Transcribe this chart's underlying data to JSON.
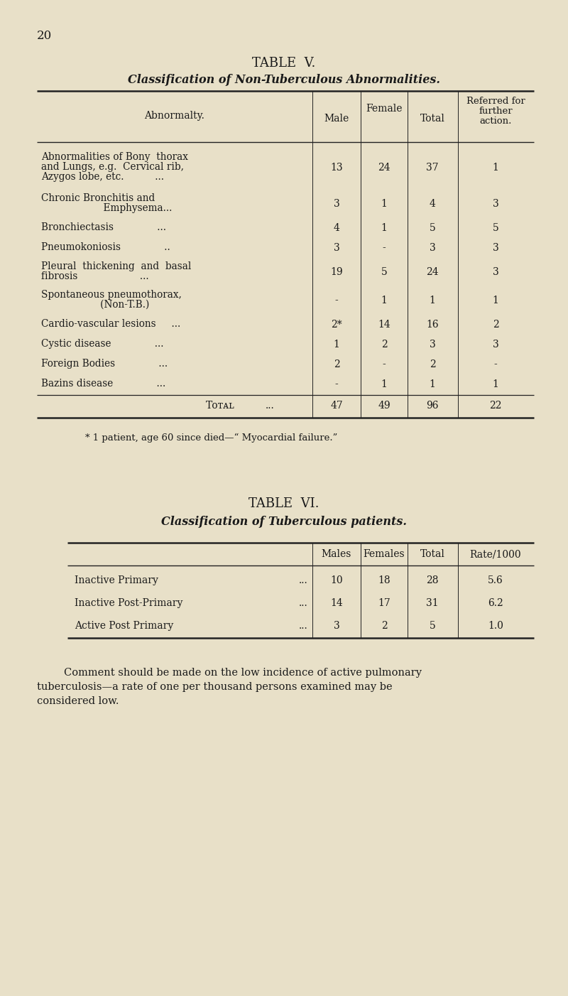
{
  "bg_color": "#e8e0c8",
  "text_color": "#1a1a1a",
  "page_number": "20",
  "table5_title": "TABLE  V.",
  "table5_subtitle": "Classification of Non-Tuberculous Abnormalities.",
  "table5_col_headers": [
    "Abnormalty.",
    "Male",
    "Female",
    "Total",
    "Referred for\nfurther\naction."
  ],
  "table5_rows": [
    [
      "Abnormalities of Bony  thorax\nand Lungs, e.g.  Cervical rib,\nAzygos lobe, etc.          ...",
      "13",
      "24",
      "37",
      "1"
    ],
    [
      "Chronic Bronchitis and\n                    Emphysema...",
      "3",
      "1",
      "4",
      "3"
    ],
    [
      "Bronchiectasis              ...",
      "4",
      "1",
      "5",
      "5"
    ],
    [
      "Pneumokoniosis              ..",
      "3",
      "-",
      "3",
      "3"
    ],
    [
      "Pleural  thickening  and  basal\nfibrosis                    ...",
      "19",
      "5",
      "24",
      "3"
    ],
    [
      "Spontaneous pneumothorax,\n                   (Non-T.B.)",
      "-",
      "1",
      "1",
      "1"
    ],
    [
      "Cardio-vascular lesions     ...",
      "2*",
      "14",
      "16",
      "2"
    ],
    [
      "Cystic disease              ...",
      "1",
      "2",
      "3",
      "3"
    ],
    [
      "Foreign Bodies              ...",
      "2",
      "-",
      "2",
      "-"
    ],
    [
      "Bazins disease              ...",
      "-",
      "1",
      "1",
      "1"
    ]
  ],
  "table5_total_row": [
    "Total              ...",
    "47",
    "49",
    "96",
    "22"
  ],
  "table5_footnote": "* 1 patient, age 60 since died—“ Myocardial failure.”",
  "table6_title": "TABLE  VI.",
  "table6_subtitle": "Classification of Tuberculous patients.",
  "table6_col_headers": [
    "",
    "Males",
    "Females",
    "Total",
    "Rate/1000"
  ],
  "table6_rows": [
    [
      "Inactive Primary         ...",
      "10",
      "18",
      "28",
      "5.6"
    ],
    [
      "Inactive Post-Primary    ...",
      "14",
      "17",
      "31",
      "6.2"
    ],
    [
      "Active Post Primary      ...",
      "3",
      "2",
      "5",
      "1.0"
    ]
  ],
  "comment": "Comment should be made on the low incidence of active pulmonary\ntuberculosis—a rate of one per thousand persons examined may be\nconsidered low."
}
